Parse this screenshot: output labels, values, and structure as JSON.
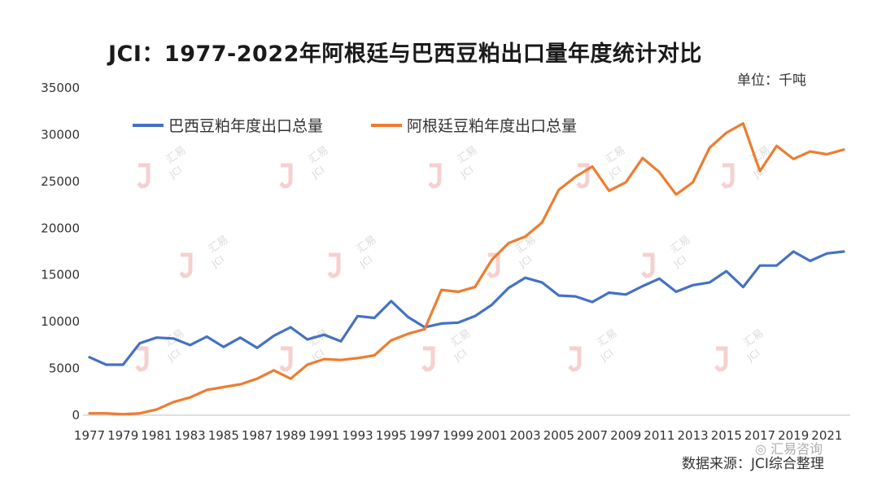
{
  "chart_data": {
    "type": "line",
    "title": "JCI：1977-2022年阿根廷与巴西豆粕出口量年度统计对比",
    "unit_label": "单位：千吨",
    "source_label": "数据来源：JCI综合整理",
    "xlabel": "",
    "ylabel": "",
    "ylim": [
      0,
      35000
    ],
    "yticks": [
      0,
      5000,
      10000,
      15000,
      20000,
      25000,
      30000,
      35000
    ],
    "x": [
      1977,
      1978,
      1979,
      1980,
      1981,
      1982,
      1983,
      1984,
      1985,
      1986,
      1987,
      1988,
      1989,
      1990,
      1991,
      1992,
      1993,
      1994,
      1995,
      1996,
      1997,
      1998,
      1999,
      2000,
      2001,
      2002,
      2003,
      2004,
      2005,
      2006,
      2007,
      2008,
      2009,
      2010,
      2011,
      2012,
      2013,
      2014,
      2015,
      2016,
      2017,
      2018,
      2019,
      2020,
      2021,
      2022
    ],
    "xticks": [
      1977,
      1979,
      1981,
      1983,
      1985,
      1987,
      1989,
      1991,
      1993,
      1995,
      1997,
      1999,
      2001,
      2003,
      2005,
      2007,
      2009,
      2011,
      2013,
      2015,
      2017,
      2019,
      2021
    ],
    "series": [
      {
        "name": "巴西豆粕年度出口总量",
        "color": "#4472C4",
        "values": [
          6200,
          5400,
          5400,
          7700,
          8300,
          8200,
          7500,
          8400,
          7300,
          8300,
          7200,
          8500,
          9400,
          8100,
          8600,
          7900,
          10600,
          10400,
          12200,
          10500,
          9400,
          9800,
          9900,
          10600,
          11800,
          13600,
          14700,
          14200,
          12800,
          12700,
          12100,
          13100,
          12900,
          13800,
          14600,
          13200,
          13900,
          14200,
          15400,
          13700,
          16000,
          16000,
          17500,
          16500,
          17300,
          17500
        ]
      },
      {
        "name": "阿根廷豆粕年度出口总量",
        "color": "#ED7D31",
        "values": [
          200,
          200,
          100,
          200,
          600,
          1400,
          1900,
          2700,
          3000,
          3300,
          3900,
          4800,
          3900,
          5400,
          6000,
          5900,
          6100,
          6400,
          8000,
          8700,
          9200,
          13400,
          13200,
          13700,
          16600,
          18400,
          19100,
          20600,
          24100,
          25500,
          26600,
          24000,
          24900,
          27500,
          26000,
          23600,
          24900,
          28600,
          30200,
          31200,
          26100,
          28800,
          27400,
          28200,
          27900,
          28400
        ]
      }
    ],
    "legend_position": "top"
  },
  "watermark": {
    "text_cn": "汇易",
    "text_en": "JCI",
    "account": "汇易咨询"
  }
}
